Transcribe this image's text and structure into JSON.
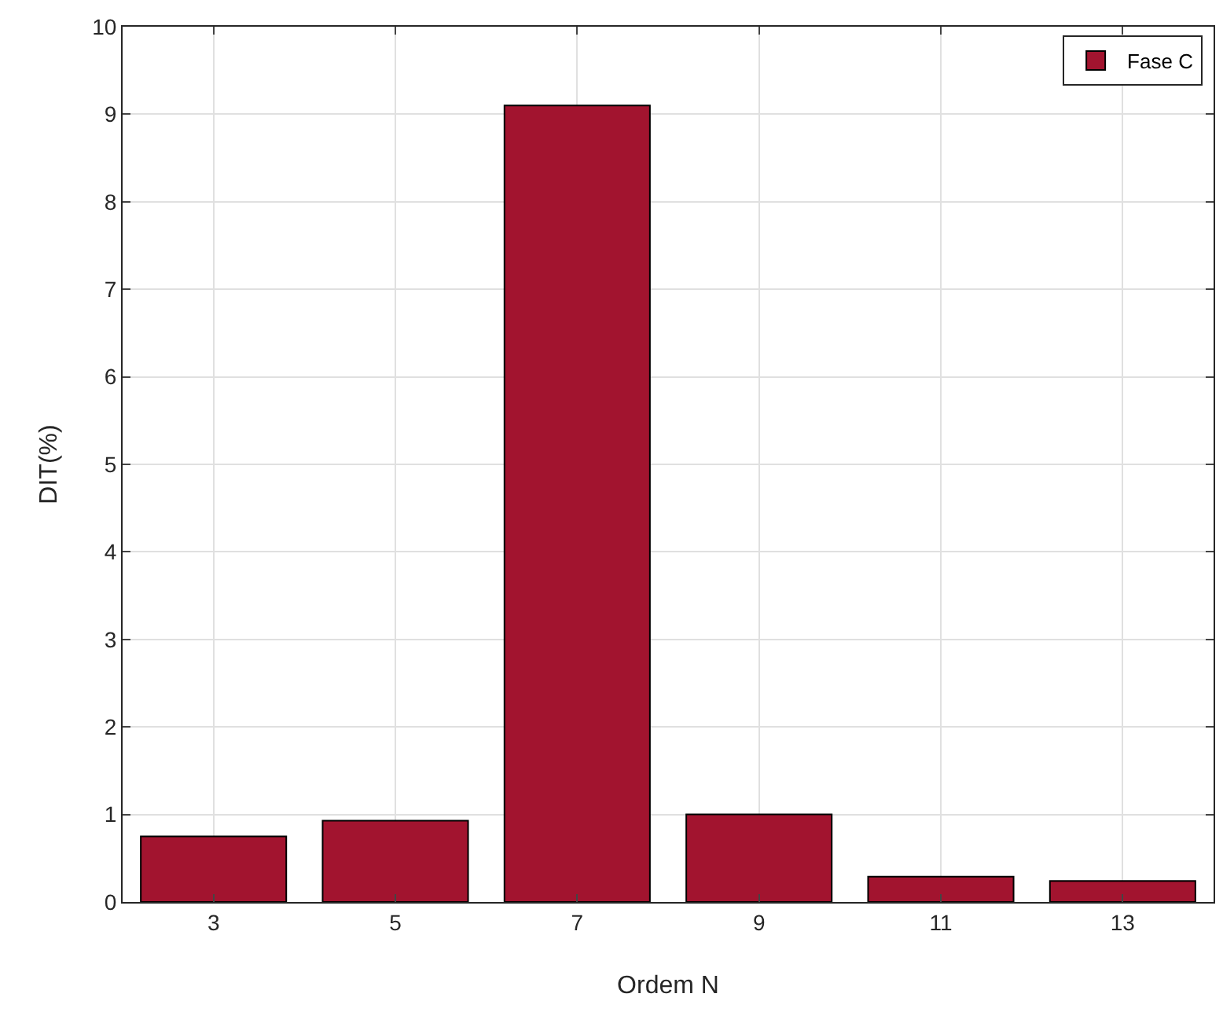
{
  "chart_data": {
    "type": "bar",
    "xlabel": "Ordem N",
    "ylabel": "DIT(%)",
    "categories": [
      "3",
      "5",
      "7",
      "9",
      "11",
      "13"
    ],
    "series": [
      {
        "name": "Fase C",
        "color": "#a2142f",
        "values": [
          0.75,
          0.93,
          9.1,
          1.0,
          0.29,
          0.24
        ]
      }
    ],
    "ylim": [
      0,
      10
    ],
    "yticks": [
      0,
      1,
      2,
      3,
      4,
      5,
      6,
      7,
      8,
      9,
      10
    ],
    "grid": true,
    "legend": "top right"
  }
}
